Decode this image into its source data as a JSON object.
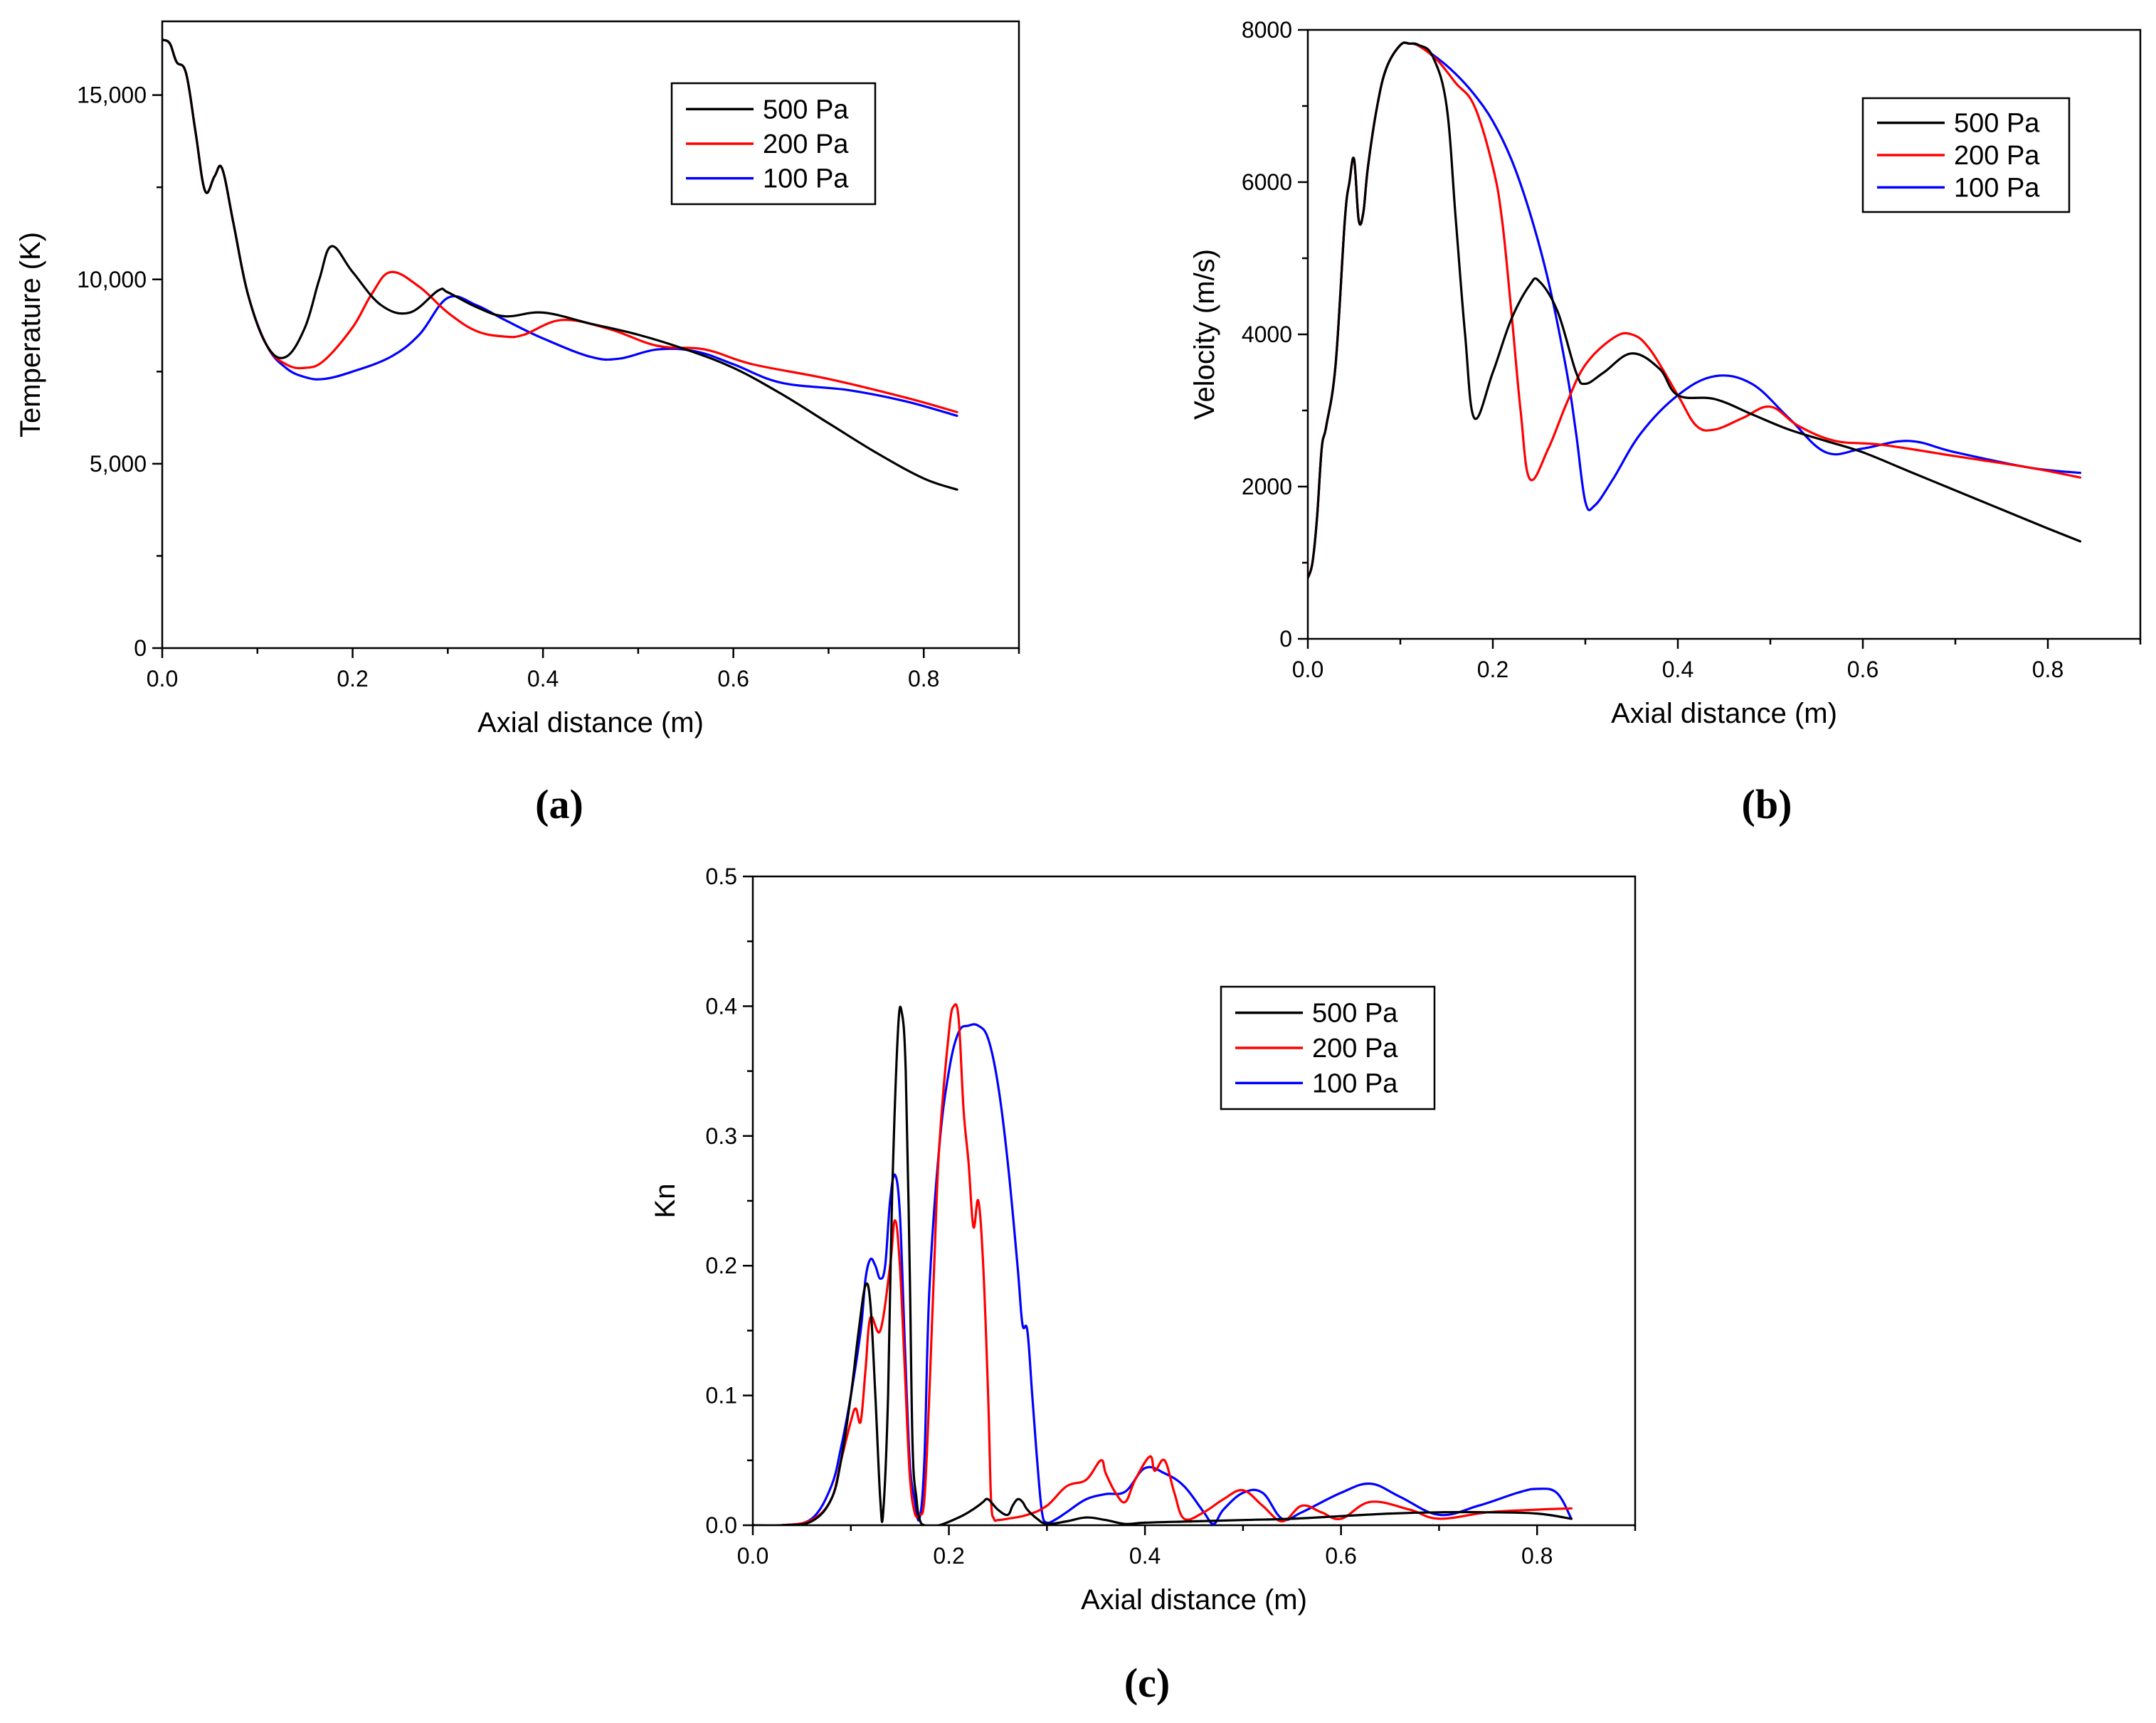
{
  "figure": {
    "colors": {
      "500 Pa": "#000000",
      "200 Pa": "#ff0000",
      "100 Pa": "#0000ff",
      "axis": "#000000",
      "background": "#ffffff"
    }
  },
  "chart_data": [
    {
      "panel": "(a)",
      "type": "line",
      "xlabel": "Axial distance (m)",
      "ylabel": "Temperature (K)",
      "xlim": [
        0,
        0.9
      ],
      "ylim": [
        0,
        17000
      ],
      "xticks": [
        "0.0",
        "0.2",
        "0.4",
        "0.6",
        "0.8"
      ],
      "yticks": [
        "0",
        "5,000",
        "10,000",
        "15,000"
      ],
      "legend_position": "top-right",
      "series": [
        {
          "name": "500 Pa",
          "color": "#000000",
          "x": [
            0,
            0.008,
            0.015,
            0.025,
            0.035,
            0.045,
            0.055,
            0.063,
            0.075,
            0.09,
            0.11,
            0.13,
            0.15,
            0.165,
            0.178,
            0.2,
            0.23,
            0.26,
            0.29,
            0.3,
            0.33,
            0.36,
            0.4,
            0.45,
            0.5,
            0.55,
            0.6,
            0.65,
            0.7,
            0.75,
            0.8,
            0.835
          ],
          "y": [
            16500,
            16400,
            15900,
            15600,
            14000,
            12400,
            12800,
            13000,
            11500,
            9600,
            8200,
            7900,
            8700,
            10000,
            10900,
            10200,
            9300,
            9100,
            9700,
            9650,
            9250,
            9000,
            9100,
            8800,
            8500,
            8100,
            7600,
            6900,
            6100,
            5300,
            4600,
            4300
          ]
        },
        {
          "name": "200 Pa",
          "color": "#ff0000",
          "x": [
            0,
            0.008,
            0.015,
            0.025,
            0.035,
            0.045,
            0.055,
            0.063,
            0.075,
            0.09,
            0.11,
            0.13,
            0.15,
            0.17,
            0.2,
            0.22,
            0.24,
            0.27,
            0.3,
            0.33,
            0.36,
            0.38,
            0.42,
            0.47,
            0.52,
            0.57,
            0.62,
            0.7,
            0.78,
            0.835
          ],
          "y": [
            16500,
            16400,
            15900,
            15600,
            14000,
            12400,
            12800,
            13000,
            11500,
            9600,
            8200,
            7700,
            7600,
            7800,
            8700,
            9600,
            10200,
            9800,
            9100,
            8600,
            8450,
            8500,
            8900,
            8650,
            8200,
            8100,
            7700,
            7300,
            6800,
            6400
          ]
        },
        {
          "name": "100 Pa",
          "color": "#0000ff",
          "x": [
            0,
            0.008,
            0.015,
            0.025,
            0.035,
            0.045,
            0.055,
            0.063,
            0.075,
            0.09,
            0.11,
            0.13,
            0.15,
            0.17,
            0.2,
            0.24,
            0.27,
            0.3,
            0.33,
            0.36,
            0.4,
            0.45,
            0.48,
            0.52,
            0.56,
            0.6,
            0.65,
            0.72,
            0.78,
            0.835
          ],
          "y": [
            16500,
            16400,
            15900,
            15600,
            14000,
            12400,
            12800,
            13000,
            11500,
            9600,
            8200,
            7600,
            7350,
            7300,
            7500,
            7900,
            8500,
            9500,
            9300,
            8900,
            8400,
            7900,
            7850,
            8100,
            8050,
            7700,
            7200,
            7000,
            6700,
            6300
          ]
        }
      ]
    },
    {
      "panel": "(b)",
      "type": "line",
      "xlabel": "Axial distance (m)",
      "ylabel": "Velocity (m/s)",
      "xlim": [
        0,
        0.9
      ],
      "ylim": [
        0,
        8000
      ],
      "xticks": [
        "0.0",
        "0.2",
        "0.4",
        "0.6",
        "0.8"
      ],
      "yticks": [
        "0",
        "2000",
        "4000",
        "6000",
        "8000"
      ],
      "legend_position": "top-right",
      "series": [
        {
          "name": "500 Pa",
          "color": "#000000",
          "x": [
            0,
            0.005,
            0.01,
            0.015,
            0.02,
            0.03,
            0.04,
            0.045,
            0.05,
            0.055,
            0.06,
            0.065,
            0.075,
            0.085,
            0.1,
            0.11,
            0.12,
            0.135,
            0.15,
            0.16,
            0.17,
            0.18,
            0.2,
            0.22,
            0.24,
            0.25,
            0.27,
            0.29,
            0.3,
            0.32,
            0.35,
            0.38,
            0.4,
            0.44,
            0.48,
            0.52,
            0.56,
            0.6,
            0.65,
            0.7,
            0.75,
            0.8,
            0.835
          ],
          "y": [
            800,
            1000,
            1600,
            2500,
            2800,
            3600,
            5500,
            6000,
            6300,
            5500,
            5600,
            6200,
            7000,
            7500,
            7800,
            7820,
            7800,
            7650,
            7000,
            5500,
            4000,
            2900,
            3500,
            4200,
            4650,
            4700,
            4300,
            3500,
            3350,
            3500,
            3750,
            3550,
            3200,
            3150,
            2950,
            2750,
            2600,
            2450,
            2200,
            1950,
            1700,
            1450,
            1280
          ]
        },
        {
          "name": "200 Pa",
          "color": "#ff0000",
          "x": [
            0,
            0.005,
            0.01,
            0.015,
            0.02,
            0.03,
            0.04,
            0.045,
            0.05,
            0.055,
            0.06,
            0.065,
            0.075,
            0.085,
            0.1,
            0.11,
            0.12,
            0.14,
            0.16,
            0.18,
            0.2,
            0.21,
            0.22,
            0.23,
            0.24,
            0.26,
            0.28,
            0.3,
            0.33,
            0.35,
            0.37,
            0.4,
            0.42,
            0.44,
            0.47,
            0.5,
            0.53,
            0.57,
            0.62,
            0.7,
            0.78,
            0.835
          ],
          "y": [
            800,
            1000,
            1600,
            2500,
            2800,
            3600,
            5500,
            6000,
            6300,
            5500,
            5600,
            6200,
            7000,
            7500,
            7800,
            7820,
            7790,
            7600,
            7300,
            7000,
            6200,
            5500,
            4300,
            3000,
            2100,
            2500,
            3100,
            3600,
            3950,
            4000,
            3800,
            3200,
            2800,
            2750,
            2900,
            3050,
            2800,
            2600,
            2550,
            2400,
            2250,
            2120
          ]
        },
        {
          "name": "100 Pa",
          "color": "#0000ff",
          "x": [
            0,
            0.005,
            0.01,
            0.015,
            0.02,
            0.03,
            0.04,
            0.045,
            0.05,
            0.055,
            0.06,
            0.065,
            0.075,
            0.085,
            0.1,
            0.11,
            0.12,
            0.14,
            0.16,
            0.18,
            0.2,
            0.22,
            0.24,
            0.26,
            0.28,
            0.29,
            0.3,
            0.31,
            0.33,
            0.36,
            0.4,
            0.44,
            0.48,
            0.52,
            0.56,
            0.6,
            0.65,
            0.7,
            0.78,
            0.835
          ],
          "y": [
            800,
            1000,
            1600,
            2500,
            2800,
            3600,
            5500,
            6000,
            6300,
            5500,
            5600,
            6200,
            7000,
            7500,
            7800,
            7820,
            7790,
            7630,
            7420,
            7150,
            6800,
            6300,
            5600,
            4700,
            3500,
            2700,
            1800,
            1750,
            2100,
            2700,
            3200,
            3450,
            3350,
            2900,
            2450,
            2500,
            2600,
            2450,
            2250,
            2180
          ]
        }
      ]
    },
    {
      "panel": "(c)",
      "type": "line",
      "xlabel": "Axial distance (m)",
      "ylabel": "Kn",
      "xlim": [
        0,
        0.9
      ],
      "ylim": [
        0,
        0.5
      ],
      "xticks": [
        "0.0",
        "0.2",
        "0.4",
        "0.6",
        "0.8"
      ],
      "yticks": [
        "0.0",
        "0.1",
        "0.2",
        "0.3",
        "0.4",
        "0.5"
      ],
      "legend_position": "top-right",
      "series": [
        {
          "name": "500 Pa",
          "color": "#000000",
          "x": [
            0,
            0.03,
            0.06,
            0.08,
            0.09,
            0.1,
            0.108,
            0.115,
            0.12,
            0.125,
            0.13,
            0.133,
            0.138,
            0.142,
            0.148,
            0.152,
            0.156,
            0.16,
            0.163,
            0.167,
            0.17,
            0.175,
            0.19,
            0.21,
            0.22,
            0.23,
            0.235,
            0.24,
            0.25,
            0.26,
            0.265,
            0.27,
            0.275,
            0.28,
            0.29,
            0.3,
            0.32,
            0.34,
            0.36,
            0.38,
            0.4,
            0.45,
            0.5,
            0.55,
            0.6,
            0.65,
            0.7,
            0.75,
            0.8,
            0.835
          ],
          "y": [
            0,
            0,
            0.003,
            0.02,
            0.05,
            0.1,
            0.15,
            0.185,
            0.17,
            0.1,
            0.02,
            0.01,
            0.1,
            0.25,
            0.38,
            0.395,
            0.35,
            0.2,
            0.06,
            0.02,
            0.005,
            0,
            0,
            0.006,
            0.01,
            0.015,
            0.018,
            0.02,
            0.012,
            0.008,
            0.015,
            0.02,
            0.018,
            0.012,
            0.005,
            0.001,
            0.003,
            0.006,
            0.004,
            0.001,
            0.002,
            0.003,
            0.004,
            0.005,
            0.007,
            0.009,
            0.01,
            0.01,
            0.009,
            0.005
          ]
        },
        {
          "name": "200 Pa",
          "color": "#ff0000",
          "x": [
            0,
            0.03,
            0.06,
            0.08,
            0.09,
            0.1,
            0.105,
            0.11,
            0.115,
            0.12,
            0.13,
            0.14,
            0.145,
            0.15,
            0.155,
            0.16,
            0.165,
            0.17,
            0.175,
            0.18,
            0.185,
            0.19,
            0.2,
            0.205,
            0.21,
            0.215,
            0.22,
            0.225,
            0.23,
            0.235,
            0.24,
            0.243,
            0.246,
            0.25,
            0.26,
            0.28,
            0.3,
            0.32,
            0.34,
            0.355,
            0.36,
            0.37,
            0.38,
            0.39,
            0.405,
            0.41,
            0.42,
            0.43,
            0.44,
            0.46,
            0.48,
            0.5,
            0.52,
            0.54,
            0.56,
            0.58,
            0.6,
            0.63,
            0.67,
            0.7,
            0.75,
            0.8,
            0.835
          ],
          "y": [
            0,
            0,
            0.004,
            0.02,
            0.05,
            0.08,
            0.09,
            0.08,
            0.12,
            0.16,
            0.15,
            0.2,
            0.235,
            0.2,
            0.12,
            0.04,
            0.01,
            0.008,
            0.02,
            0.1,
            0.2,
            0.29,
            0.38,
            0.4,
            0.39,
            0.32,
            0.28,
            0.23,
            0.25,
            0.2,
            0.1,
            0.02,
            0.005,
            0.004,
            0.005,
            0.008,
            0.015,
            0.03,
            0.035,
            0.05,
            0.04,
            0.025,
            0.018,
            0.035,
            0.053,
            0.042,
            0.05,
            0.025,
            0.005,
            0.01,
            0.02,
            0.027,
            0.015,
            0.003,
            0.015,
            0.01,
            0.005,
            0.018,
            0.012,
            0.005,
            0.01,
            0.012,
            0.013
          ]
        },
        {
          "name": "100 Pa",
          "color": "#0000ff",
          "x": [
            0,
            0.03,
            0.06,
            0.08,
            0.09,
            0.1,
            0.11,
            0.115,
            0.12,
            0.125,
            0.13,
            0.135,
            0.14,
            0.145,
            0.15,
            0.155,
            0.16,
            0.165,
            0.17,
            0.175,
            0.18,
            0.19,
            0.2,
            0.21,
            0.22,
            0.23,
            0.24,
            0.25,
            0.26,
            0.27,
            0.275,
            0.28,
            0.285,
            0.29,
            0.295,
            0.3,
            0.31,
            0.32,
            0.34,
            0.36,
            0.38,
            0.4,
            0.42,
            0.44,
            0.46,
            0.47,
            0.48,
            0.5,
            0.52,
            0.54,
            0.56,
            0.6,
            0.63,
            0.66,
            0.7,
            0.74,
            0.78,
            0.8,
            0.82,
            0.835
          ],
          "y": [
            0,
            0,
            0.005,
            0.03,
            0.06,
            0.1,
            0.15,
            0.19,
            0.205,
            0.2,
            0.19,
            0.2,
            0.25,
            0.27,
            0.24,
            0.14,
            0.05,
            0.02,
            0.005,
            0.05,
            0.18,
            0.29,
            0.35,
            0.38,
            0.385,
            0.385,
            0.375,
            0.34,
            0.28,
            0.2,
            0.155,
            0.15,
            0.1,
            0.05,
            0.01,
            0.002,
            0.005,
            0.01,
            0.02,
            0.024,
            0.026,
            0.044,
            0.04,
            0.03,
            0.01,
            0.001,
            0.012,
            0.025,
            0.025,
            0.005,
            0.01,
            0.025,
            0.032,
            0.022,
            0.008,
            0.015,
            0.025,
            0.028,
            0.025,
            0.005
          ]
        }
      ]
    }
  ]
}
